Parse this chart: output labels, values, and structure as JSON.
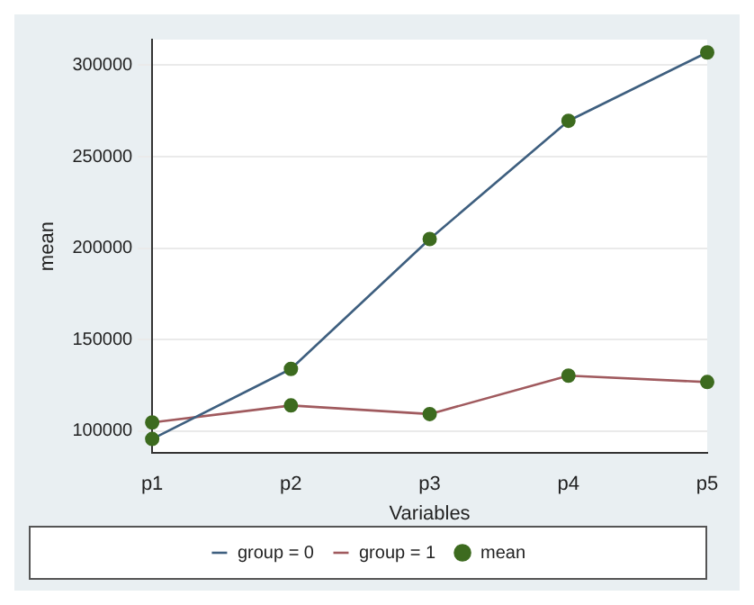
{
  "chart_data": {
    "type": "line",
    "xlabel": "Variables",
    "ylabel": "mean",
    "categories": [
      "p1",
      "p2",
      "p3",
      "p4",
      "p5"
    ],
    "series": [
      {
        "name": "group = 0",
        "color": "#3e5f7f",
        "values": [
          95700,
          134000,
          205000,
          269600,
          307000
        ],
        "marker": "none"
      },
      {
        "name": "group = 1",
        "color": "#a05a5e",
        "values": [
          104700,
          114000,
          109300,
          130300,
          126800
        ],
        "marker": "none"
      },
      {
        "name": "mean",
        "type": "scatter",
        "color": "#3d6b1f",
        "marker": "circle",
        "x": [
          "p1",
          "p2",
          "p3",
          "p4",
          "p5",
          "p1",
          "p2",
          "p3",
          "p4",
          "p5"
        ],
        "values": [
          95700,
          134000,
          205000,
          269600,
          307000,
          104700,
          114000,
          109300,
          130300,
          126800
        ]
      }
    ],
    "ylim": [
      88000,
      314000
    ],
    "yticks": [
      100000,
      150000,
      200000,
      250000,
      300000
    ],
    "grid": "y",
    "legend": "bottom",
    "line_style": "solid"
  }
}
